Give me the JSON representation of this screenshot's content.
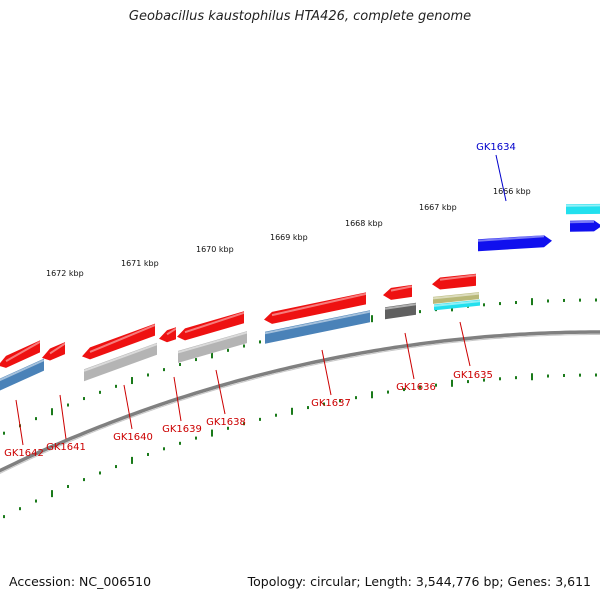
{
  "title": "Geobacillus kaustophilus HTA426, complete genome",
  "footer": {
    "accession": "Accession: NC_006510",
    "summary": "Topology: circular; Length: 3,544,776 bp; Genes: 3,611"
  },
  "colors": {
    "backbone": "#808080",
    "tick": "#1a7a1a",
    "gene_red": "#ee1111",
    "gene_blue": "#1010ee",
    "bar_steel": "#4a82b8",
    "bar_gray": "#b4b4b4",
    "bar_dark": "#606060",
    "bar_cyan": "#22e0ee",
    "bar_olive": "#b8b878",
    "label_red": "#cc0000",
    "label_blue": "#0000cc"
  },
  "tick_labels": [
    "1672 kbp",
    "1671 kbp",
    "1670 kbp",
    "1669 kbp",
    "1668 kbp",
    "1667 kbp",
    "1666 kbp"
  ],
  "gene_labels": [
    {
      "name": "GK1634",
      "color": "blue"
    },
    {
      "name": "GK1635",
      "color": "red"
    },
    {
      "name": "GK1636",
      "color": "red"
    },
    {
      "name": "GK1637",
      "color": "red"
    },
    {
      "name": "GK1638",
      "color": "red"
    },
    {
      "name": "GK1639",
      "color": "red"
    },
    {
      "name": "GK1640",
      "color": "red"
    },
    {
      "name": "GK1641",
      "color": "red"
    },
    {
      "name": "GK1642",
      "color": "red"
    }
  ]
}
